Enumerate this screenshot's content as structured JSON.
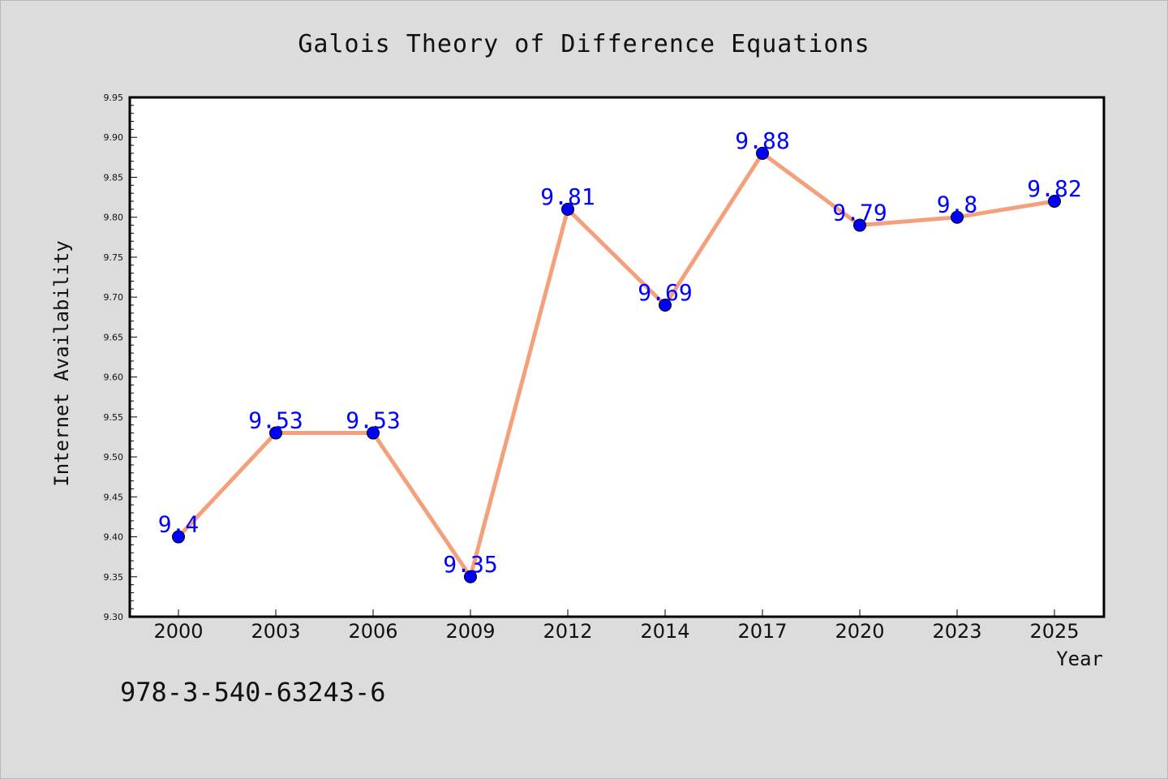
{
  "chart_data": {
    "type": "line",
    "title": "Galois Theory of Difference Equations",
    "xlabel": "Year",
    "ylabel": "Internet Availability",
    "categories": [
      "2000",
      "2003",
      "2006",
      "2009",
      "2012",
      "2014",
      "2017",
      "2020",
      "2023",
      "2025"
    ],
    "series": [
      {
        "values": [
          9.4,
          9.53,
          9.53,
          9.35,
          9.81,
          9.69,
          9.88,
          9.79,
          9.8,
          9.82
        ],
        "labels": [
          "9.4",
          "9.53",
          "9.53",
          "9.35",
          "9.81",
          "9.69",
          "9.88",
          "9.79",
          "9.8",
          "9.82"
        ]
      }
    ],
    "ylim": [
      9.3,
      9.95
    ],
    "yticks": [
      "9.30",
      "9.35",
      "9.40",
      "9.45",
      "9.50",
      "9.55",
      "9.60",
      "9.65",
      "9.70",
      "9.75",
      "9.80",
      "9.85",
      "9.90",
      "9.95"
    ],
    "grid": false,
    "line_color": "#f4a07c",
    "marker_color": "#0000ff",
    "label_color": "#0000ff",
    "background_color": "#dcdcdc",
    "plot_background_color": "#ffffff"
  },
  "footer": {
    "isbn": "978-3-540-63243-6"
  }
}
